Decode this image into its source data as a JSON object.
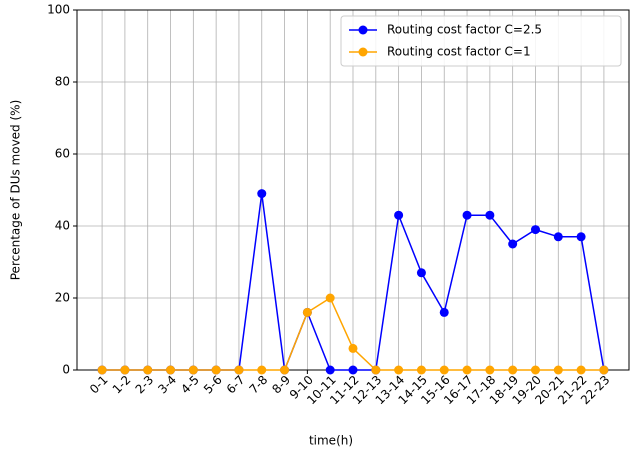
{
  "chart_data": {
    "type": "line",
    "x_label": "time(h)",
    "y_label": "Percentage of DUs moved (%)",
    "categories": [
      "0-1",
      "1-2",
      "2-3",
      "3-4",
      "4-5",
      "5-6",
      "6-7",
      "7-8",
      "8-9",
      "9-10",
      "10-11",
      "11-12",
      "12-13",
      "13-14",
      "14-15",
      "15-16",
      "16-17",
      "17-18",
      "18-19",
      "19-20",
      "20-21",
      "21-22",
      "22-23"
    ],
    "series": [
      {
        "name": "Routing cost factor C=2.5",
        "color": "#0000ff",
        "values": [
          0,
          0,
          0,
          0,
          0,
          0,
          0,
          49,
          0,
          16,
          0,
          0,
          0,
          43,
          27,
          16,
          43,
          43,
          35,
          39,
          37,
          37,
          0
        ]
      },
      {
        "name": "Routing cost factor C=1",
        "color": "#ffa500",
        "values": [
          0,
          0,
          0,
          0,
          0,
          0,
          0,
          0,
          0,
          16,
          20,
          6,
          0,
          0,
          0,
          0,
          0,
          0,
          0,
          0,
          0,
          0,
          0
        ]
      }
    ],
    "ylim": [
      0,
      100
    ],
    "yticks": [
      0,
      20,
      40,
      60,
      80,
      100
    ],
    "grid": true,
    "legend": "upper right"
  }
}
